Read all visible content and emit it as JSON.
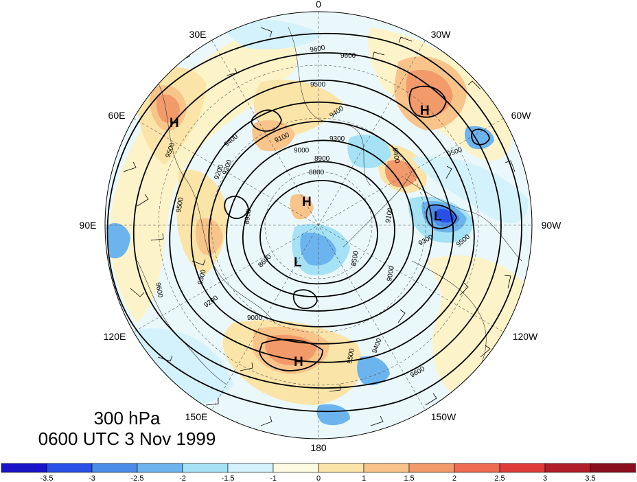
{
  "map": {
    "projection": "north-polar-stereographic",
    "longitude_labels": [
      "0",
      "30W",
      "60W",
      "90W",
      "120W",
      "150W",
      "180",
      "150E",
      "120E",
      "90E",
      "60E",
      "30E"
    ],
    "contour_labels": [
      "9600",
      "9600",
      "9500",
      "9400",
      "9300",
      "9100",
      "9000",
      "8900",
      "8800",
      "8900",
      "9200",
      "9500",
      "9500",
      "9600",
      "9400",
      "9300",
      "9200",
      "9000",
      "8600",
      "8500",
      "9500",
      "9400",
      "9600",
      "9500",
      "9300",
      "9100",
      "9000",
      "9200",
      "9400",
      "9500"
    ],
    "pressure_systems": [
      {
        "type": "H",
        "label": "H"
      },
      {
        "type": "H",
        "label": "H"
      },
      {
        "type": "H",
        "label": "H"
      },
      {
        "type": "H",
        "label": "H"
      },
      {
        "type": "L",
        "label": "L"
      },
      {
        "type": "L",
        "label": "L"
      }
    ],
    "fill_scale_colors": {
      "neg3_5": "#1a14c8",
      "neg3": "#2850e6",
      "neg2_5": "#4a8ce8",
      "neg2": "#6cb4ee",
      "neg1_5": "#a6e2f5",
      "neg1": "#d4f2fb",
      "zero": "#fdfbe0",
      "pos1": "#fbe4a8",
      "pos1_5": "#f8c48a",
      "pos2": "#f29a6a",
      "pos2_5": "#ee6a50",
      "pos3": "#e03a3a",
      "pos3_5": "#b01e2a"
    }
  },
  "annotation": {
    "level": "300 hPa",
    "datetime": "0600 UTC 3 Nov 1999"
  },
  "colorbar": {
    "ticks": [
      "-3.5",
      "-3",
      "-2.5",
      "-2",
      "-1.5",
      "-1",
      "0",
      "1",
      "1.5",
      "2",
      "2.5",
      "3",
      "3.5"
    ],
    "colors": [
      "#1a14c8",
      "#2850e6",
      "#4a8ce8",
      "#6cb4ee",
      "#a6e2f5",
      "#d4f2fb",
      "#fdfbe0",
      "#fbe4a8",
      "#f8c48a",
      "#f29a6a",
      "#ee6a50",
      "#e03a3a",
      "#b01e2a",
      "#8a0f1e"
    ]
  }
}
